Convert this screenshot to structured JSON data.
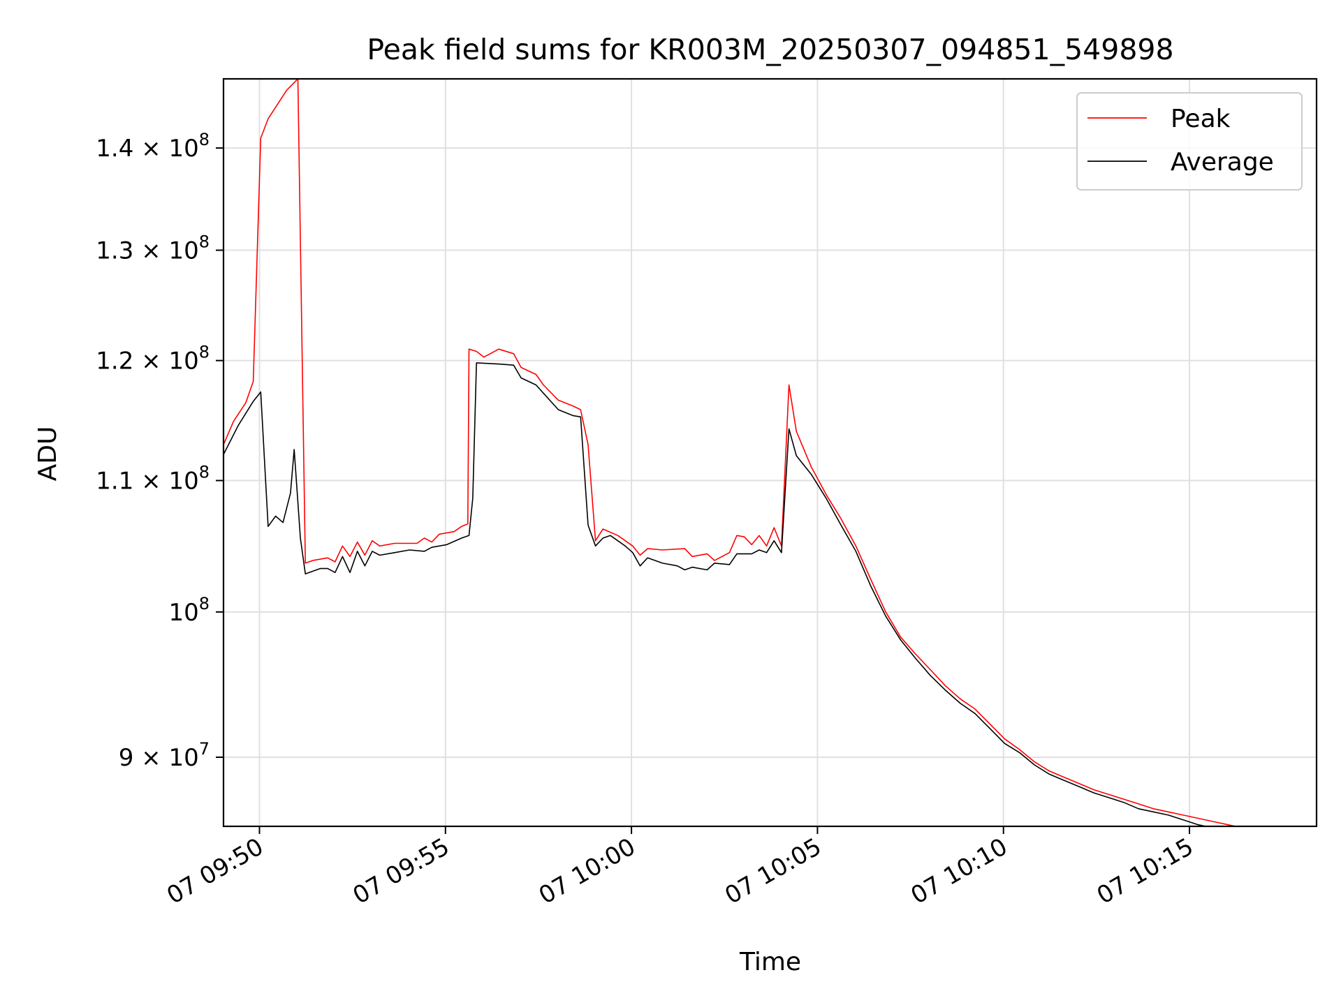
{
  "chart_data": {
    "type": "line",
    "title": "Peak field sums for KR003M_20250307_094851_549898",
    "xlabel": "Time",
    "ylabel": "ADU",
    "yscale": "log",
    "grid": true,
    "legend_position": "top-right",
    "xlim": [
      "2025-03-07T09:49:02",
      "2025-03-07T10:18:25"
    ],
    "ylim": [
      85600000,
      147200000
    ],
    "x_ticks": [
      {
        "value": "2025-03-07T09:50:00",
        "label": "07 09:50"
      },
      {
        "value": "2025-03-07T09:55:00",
        "label": "07 09:55"
      },
      {
        "value": "2025-03-07T10:00:00",
        "label": "07 10:00"
      },
      {
        "value": "2025-03-07T10:05:00",
        "label": "07 10:05"
      },
      {
        "value": "2025-03-07T10:10:00",
        "label": "07 10:10"
      },
      {
        "value": "2025-03-07T10:15:00",
        "label": "07 10:15"
      }
    ],
    "y_ticks": [
      {
        "value": 90000000,
        "mantissa": "9",
        "base": "10",
        "exponent": "7"
      },
      {
        "value": 100000000,
        "mantissa": "",
        "base": "10",
        "exponent": "8"
      },
      {
        "value": 110000000,
        "mantissa": "1.1",
        "base": "10",
        "exponent": "8"
      },
      {
        "value": 120000000,
        "mantissa": "1.2",
        "base": "10",
        "exponent": "8"
      },
      {
        "value": 130000000,
        "mantissa": "1.3",
        "base": "10",
        "exponent": "8"
      },
      {
        "value": 140000000,
        "mantissa": "1.4",
        "base": "10",
        "exponent": "8"
      }
    ],
    "series": [
      {
        "name": "Peak",
        "color": "#ff0000",
        "points": [
          [
            "2025-03-07T09:49:02",
            112900000
          ],
          [
            "2025-03-07T09:49:18",
            114800000
          ],
          [
            "2025-03-07T09:49:38",
            116400000
          ],
          [
            "2025-03-07T09:49:50",
            118200000
          ],
          [
            "2025-03-07T09:50:02",
            141000000
          ],
          [
            "2025-03-07T09:50:14",
            143000000
          ],
          [
            "2025-03-07T09:50:26",
            144200000
          ],
          [
            "2025-03-07T09:50:44",
            146000000
          ],
          [
            "2025-03-07T09:51:02",
            147200000
          ],
          [
            "2025-03-07T09:51:14",
            103600000
          ],
          [
            "2025-03-07T09:51:26",
            103800000
          ],
          [
            "2025-03-07T09:51:50",
            104000000
          ],
          [
            "2025-03-07T09:52:02",
            103700000
          ],
          [
            "2025-03-07T09:52:14",
            104900000
          ],
          [
            "2025-03-07T09:52:26",
            104100000
          ],
          [
            "2025-03-07T09:52:38",
            105200000
          ],
          [
            "2025-03-07T09:52:50",
            104200000
          ],
          [
            "2025-03-07T09:53:02",
            105300000
          ],
          [
            "2025-03-07T09:53:14",
            104900000
          ],
          [
            "2025-03-07T09:53:38",
            105100000
          ],
          [
            "2025-03-07T09:54:14",
            105100000
          ],
          [
            "2025-03-07T09:54:26",
            105500000
          ],
          [
            "2025-03-07T09:54:38",
            105200000
          ],
          [
            "2025-03-07T09:54:50",
            105800000
          ],
          [
            "2025-03-07T09:55:14",
            106000000
          ],
          [
            "2025-03-07T09:55:26",
            106400000
          ],
          [
            "2025-03-07T09:55:36",
            106600000
          ],
          [
            "2025-03-07T09:55:38",
            121000000
          ],
          [
            "2025-03-07T09:55:50",
            120800000
          ],
          [
            "2025-03-07T09:56:02",
            120300000
          ],
          [
            "2025-03-07T09:56:26",
            121000000
          ],
          [
            "2025-03-07T09:56:50",
            120600000
          ],
          [
            "2025-03-07T09:57:02",
            119400000
          ],
          [
            "2025-03-07T09:57:26",
            118800000
          ],
          [
            "2025-03-07T09:57:38",
            117900000
          ],
          [
            "2025-03-07T09:58:02",
            116600000
          ],
          [
            "2025-03-07T09:58:26",
            116100000
          ],
          [
            "2025-03-07T09:58:38",
            115800000
          ],
          [
            "2025-03-07T09:58:50",
            112900000
          ],
          [
            "2025-03-07T09:59:02",
            105300000
          ],
          [
            "2025-03-07T09:59:14",
            106200000
          ],
          [
            "2025-03-07T09:59:38",
            105700000
          ],
          [
            "2025-03-07T10:00:02",
            104900000
          ],
          [
            "2025-03-07T10:00:14",
            104200000
          ],
          [
            "2025-03-07T10:00:26",
            104700000
          ],
          [
            "2025-03-07T10:00:50",
            104600000
          ],
          [
            "2025-03-07T10:01:26",
            104700000
          ],
          [
            "2025-03-07T10:01:38",
            104100000
          ],
          [
            "2025-03-07T10:02:02",
            104300000
          ],
          [
            "2025-03-07T10:02:14",
            103800000
          ],
          [
            "2025-03-07T10:02:38",
            104400000
          ],
          [
            "2025-03-07T10:02:50",
            105700000
          ],
          [
            "2025-03-07T10:03:02",
            105600000
          ],
          [
            "2025-03-07T10:03:14",
            105000000
          ],
          [
            "2025-03-07T10:03:26",
            105700000
          ],
          [
            "2025-03-07T10:03:38",
            104900000
          ],
          [
            "2025-03-07T10:03:50",
            106300000
          ],
          [
            "2025-03-07T10:04:02",
            104900000
          ],
          [
            "2025-03-07T10:04:14",
            117900000
          ],
          [
            "2025-03-07T10:04:26",
            114000000
          ],
          [
            "2025-03-07T10:04:50",
            111100000
          ],
          [
            "2025-03-07T10:05:14",
            108900000
          ],
          [
            "2025-03-07T10:05:38",
            107000000
          ],
          [
            "2025-03-07T10:06:02",
            104900000
          ],
          [
            "2025-03-07T10:06:26",
            102400000
          ],
          [
            "2025-03-07T10:06:50",
            100000000
          ],
          [
            "2025-03-07T10:07:14",
            98200000
          ],
          [
            "2025-03-07T10:07:38",
            97000000
          ],
          [
            "2025-03-07T10:08:02",
            95900000
          ],
          [
            "2025-03-07T10:08:26",
            94800000
          ],
          [
            "2025-03-07T10:08:50",
            93900000
          ],
          [
            "2025-03-07T10:09:14",
            93200000
          ],
          [
            "2025-03-07T10:09:38",
            92200000
          ],
          [
            "2025-03-07T10:10:02",
            91200000
          ],
          [
            "2025-03-07T10:10:26",
            90500000
          ],
          [
            "2025-03-07T10:10:50",
            89700000
          ],
          [
            "2025-03-07T10:11:14",
            89100000
          ],
          [
            "2025-03-07T10:11:38",
            88700000
          ],
          [
            "2025-03-07T10:12:02",
            88300000
          ],
          [
            "2025-03-07T10:12:26",
            87900000
          ],
          [
            "2025-03-07T10:12:50",
            87600000
          ],
          [
            "2025-03-07T10:13:14",
            87300000
          ],
          [
            "2025-03-07T10:13:38",
            87000000
          ],
          [
            "2025-03-07T10:14:02",
            86700000
          ],
          [
            "2025-03-07T10:14:26",
            86500000
          ],
          [
            "2025-03-07T10:14:50",
            86300000
          ],
          [
            "2025-03-07T10:15:14",
            86100000
          ],
          [
            "2025-03-07T10:15:38",
            85900000
          ],
          [
            "2025-03-07T10:16:02",
            85700000
          ],
          [
            "2025-03-07T10:16:26",
            85500000
          ],
          [
            "2025-03-07T10:16:50",
            85300000
          ],
          [
            "2025-03-07T10:17:14",
            85200000
          ],
          [
            "2025-03-07T10:17:38",
            85000000
          ],
          [
            "2025-03-07T10:17:50",
            84900000
          ],
          [
            "2025-03-07T10:18:02",
            84600000
          ],
          [
            "2025-03-07T10:18:25",
            84600000
          ]
        ]
      },
      {
        "name": "Average",
        "color": "#000000",
        "points": [
          [
            "2025-03-07T09:49:02",
            112100000
          ],
          [
            "2025-03-07T09:49:26",
            114500000
          ],
          [
            "2025-03-07T09:49:50",
            116500000
          ],
          [
            "2025-03-07T09:50:02",
            117300000
          ],
          [
            "2025-03-07T09:50:14",
            106400000
          ],
          [
            "2025-03-07T09:50:26",
            107200000
          ],
          [
            "2025-03-07T09:50:38",
            106700000
          ],
          [
            "2025-03-07T09:50:50",
            109000000
          ],
          [
            "2025-03-07T09:50:56",
            112500000
          ],
          [
            "2025-03-07T09:51:06",
            105500000
          ],
          [
            "2025-03-07T09:51:14",
            102800000
          ],
          [
            "2025-03-07T09:51:38",
            103200000
          ],
          [
            "2025-03-07T09:51:50",
            103200000
          ],
          [
            "2025-03-07T09:52:02",
            102900000
          ],
          [
            "2025-03-07T09:52:14",
            104100000
          ],
          [
            "2025-03-07T09:52:26",
            102900000
          ],
          [
            "2025-03-07T09:52:38",
            104500000
          ],
          [
            "2025-03-07T09:52:50",
            103400000
          ],
          [
            "2025-03-07T09:53:02",
            104500000
          ],
          [
            "2025-03-07T09:53:14",
            104200000
          ],
          [
            "2025-03-07T09:53:38",
            104400000
          ],
          [
            "2025-03-07T09:54:02",
            104600000
          ],
          [
            "2025-03-07T09:54:26",
            104500000
          ],
          [
            "2025-03-07T09:54:38",
            104800000
          ],
          [
            "2025-03-07T09:55:02",
            105000000
          ],
          [
            "2025-03-07T09:55:26",
            105500000
          ],
          [
            "2025-03-07T09:55:38",
            105700000
          ],
          [
            "2025-03-07T09:55:44",
            108600000
          ],
          [
            "2025-03-07T09:55:50",
            119800000
          ],
          [
            "2025-03-07T09:56:26",
            119700000
          ],
          [
            "2025-03-07T09:56:50",
            119600000
          ],
          [
            "2025-03-07T09:57:02",
            118500000
          ],
          [
            "2025-03-07T09:57:26",
            117900000
          ],
          [
            "2025-03-07T09:57:38",
            117200000
          ],
          [
            "2025-03-07T09:58:02",
            115800000
          ],
          [
            "2025-03-07T09:58:26",
            115300000
          ],
          [
            "2025-03-07T09:58:38",
            115200000
          ],
          [
            "2025-03-07T09:58:50",
            106500000
          ],
          [
            "2025-03-07T09:59:02",
            104900000
          ],
          [
            "2025-03-07T09:59:14",
            105500000
          ],
          [
            "2025-03-07T09:59:26",
            105700000
          ],
          [
            "2025-03-07T09:59:50",
            104900000
          ],
          [
            "2025-03-07T10:00:02",
            104400000
          ],
          [
            "2025-03-07T10:00:14",
            103400000
          ],
          [
            "2025-03-07T10:00:26",
            104000000
          ],
          [
            "2025-03-07T10:00:50",
            103600000
          ],
          [
            "2025-03-07T10:01:14",
            103400000
          ],
          [
            "2025-03-07T10:01:26",
            103100000
          ],
          [
            "2025-03-07T10:01:38",
            103300000
          ],
          [
            "2025-03-07T10:02:02",
            103100000
          ],
          [
            "2025-03-07T10:02:14",
            103600000
          ],
          [
            "2025-03-07T10:02:38",
            103500000
          ],
          [
            "2025-03-07T10:02:50",
            104300000
          ],
          [
            "2025-03-07T10:03:14",
            104300000
          ],
          [
            "2025-03-07T10:03:26",
            104600000
          ],
          [
            "2025-03-07T10:03:38",
            104400000
          ],
          [
            "2025-03-07T10:03:50",
            105300000
          ],
          [
            "2025-03-07T10:04:02",
            104400000
          ],
          [
            "2025-03-07T10:04:14",
            114200000
          ],
          [
            "2025-03-07T10:04:26",
            112000000
          ],
          [
            "2025-03-07T10:04:50",
            110500000
          ],
          [
            "2025-03-07T10:05:14",
            108600000
          ],
          [
            "2025-03-07T10:05:38",
            106500000
          ],
          [
            "2025-03-07T10:06:02",
            104500000
          ],
          [
            "2025-03-07T10:06:26",
            101900000
          ],
          [
            "2025-03-07T10:06:50",
            99700000
          ],
          [
            "2025-03-07T10:07:14",
            98000000
          ],
          [
            "2025-03-07T10:07:38",
            96700000
          ],
          [
            "2025-03-07T10:08:02",
            95500000
          ],
          [
            "2025-03-07T10:08:26",
            94500000
          ],
          [
            "2025-03-07T10:08:50",
            93600000
          ],
          [
            "2025-03-07T10:09:14",
            92900000
          ],
          [
            "2025-03-07T10:09:38",
            91900000
          ],
          [
            "2025-03-07T10:10:02",
            90900000
          ],
          [
            "2025-03-07T10:10:26",
            90300000
          ],
          [
            "2025-03-07T10:10:50",
            89500000
          ],
          [
            "2025-03-07T10:11:14",
            88900000
          ],
          [
            "2025-03-07T10:11:38",
            88500000
          ],
          [
            "2025-03-07T10:12:02",
            88100000
          ],
          [
            "2025-03-07T10:12:26",
            87700000
          ],
          [
            "2025-03-07T10:12:50",
            87400000
          ],
          [
            "2025-03-07T10:13:14",
            87100000
          ],
          [
            "2025-03-07T10:13:38",
            86700000
          ],
          [
            "2025-03-07T10:14:02",
            86500000
          ],
          [
            "2025-03-07T10:14:26",
            86300000
          ],
          [
            "2025-03-07T10:14:50",
            86000000
          ],
          [
            "2025-03-07T10:15:14",
            85700000
          ],
          [
            "2025-03-07T10:15:38",
            85500000
          ],
          [
            "2025-03-07T10:16:02",
            85300000
          ],
          [
            "2025-03-07T10:16:26",
            85100000
          ],
          [
            "2025-03-07T10:16:50",
            84900000
          ],
          [
            "2025-03-07T10:17:14",
            84800000
          ],
          [
            "2025-03-07T10:17:38",
            84700000
          ],
          [
            "2025-03-07T10:17:50",
            84600000
          ],
          [
            "2025-03-07T10:18:02",
            84600000
          ],
          [
            "2025-03-07T10:18:25",
            84600000
          ]
        ]
      }
    ]
  }
}
